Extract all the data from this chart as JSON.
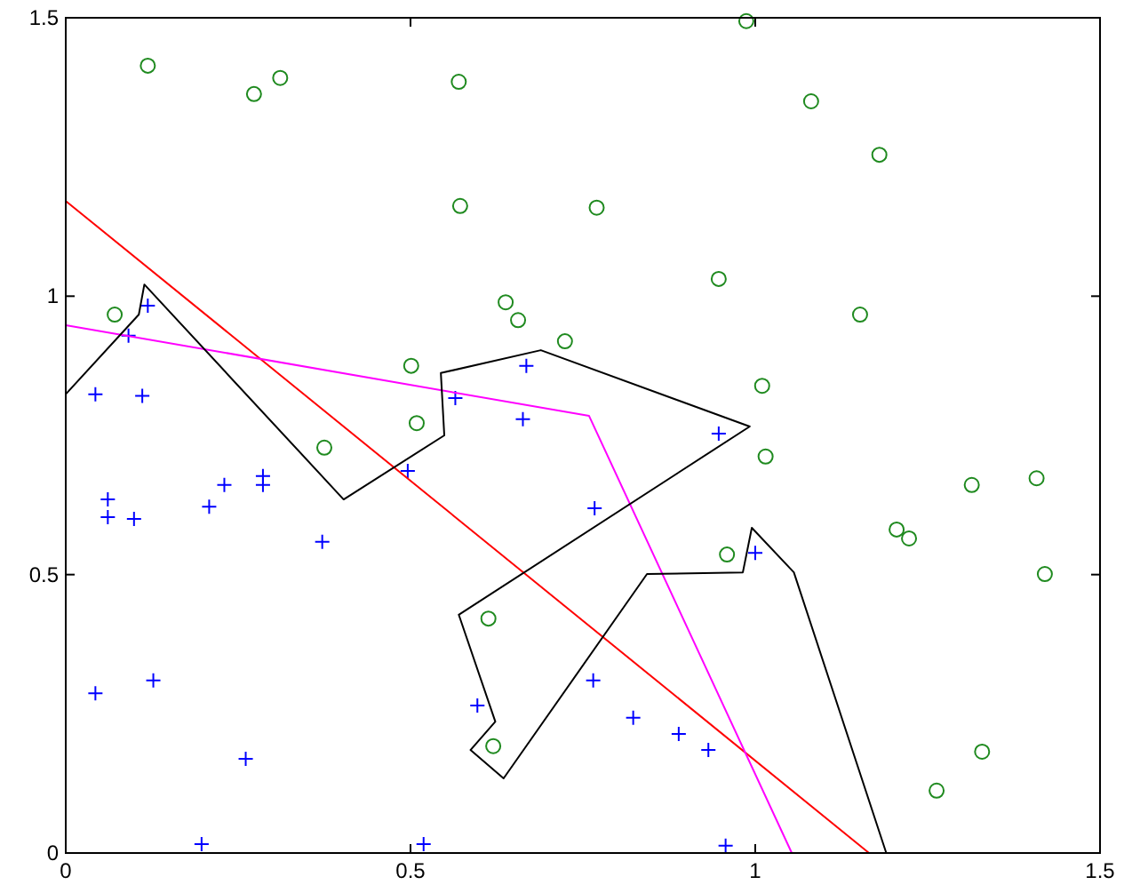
{
  "chart_data": {
    "type": "scatter",
    "xlim": [
      0,
      1.5
    ],
    "ylim": [
      0,
      1.5
    ],
    "xticks": [
      0,
      0.5,
      1,
      1.5
    ],
    "yticks": [
      0,
      0.5,
      1,
      1.5
    ],
    "grid": false,
    "series": [
      {
        "marker": "circle",
        "color": "#1f8a1f",
        "x": [
          0.119,
          0.273,
          0.311,
          0.57,
          0.572,
          0.071,
          0.375,
          0.501,
          0.509,
          0.638,
          0.656,
          0.724,
          0.77,
          0.987,
          0.947,
          1.081,
          1.18,
          1.01,
          1.015,
          1.152,
          1.314,
          1.408,
          1.205,
          1.223,
          1.42,
          0.959,
          0.613,
          0.62,
          1.263,
          1.329
        ],
        "values": [
          1.414,
          1.363,
          1.392,
          1.385,
          1.162,
          0.967,
          0.728,
          0.875,
          0.772,
          0.989,
          0.957,
          0.919,
          1.159,
          1.494,
          1.031,
          1.35,
          1.254,
          0.839,
          0.712,
          0.967,
          0.661,
          0.673,
          0.581,
          0.565,
          0.501,
          0.536,
          0.421,
          0.192,
          0.112,
          0.182
        ]
      },
      {
        "marker": "cross",
        "color": "#0000ff",
        "x": [
          0.119,
          0.091,
          0.043,
          0.111,
          0.061,
          0.061,
          0.099,
          0.208,
          0.23,
          0.286,
          0.286,
          0.372,
          0.043,
          0.127,
          0.261,
          0.197,
          0.519,
          0.496,
          0.565,
          0.668,
          0.663,
          0.767,
          0.947,
          1.0,
          0.765,
          0.823,
          0.889,
          0.932,
          0.957,
          0.597
        ],
        "values": [
          0.983,
          0.929,
          0.824,
          0.821,
          0.635,
          0.603,
          0.6,
          0.622,
          0.661,
          0.677,
          0.661,
          0.559,
          0.287,
          0.31,
          0.169,
          0.016,
          0.016,
          0.686,
          0.817,
          0.875,
          0.779,
          0.619,
          0.753,
          0.539,
          0.31,
          0.243,
          0.214,
          0.185,
          0.013,
          0.265
        ]
      },
      {
        "type": "line",
        "marker": "none",
        "line_style": "solid",
        "color": "#ff0000",
        "x": [
          0,
          1.165
        ],
        "values": [
          1.171,
          0
        ]
      },
      {
        "type": "line",
        "marker": "none",
        "line_style": "solid",
        "color": "#ff00ff",
        "x": [
          0,
          0.759,
          1.053
        ],
        "values": [
          0.948,
          0.785,
          0
        ]
      },
      {
        "type": "line",
        "marker": "none",
        "line_style": "solid",
        "color": "#000000",
        "x": [
          0,
          0.106,
          0.114,
          0.403,
          0.549,
          0.544,
          0.689,
          0.992,
          0.57,
          0.623,
          0.587,
          0.635,
          0.843,
          0.982,
          0.995,
          1.056,
          1.19
        ],
        "values": [
          0.824,
          0.967,
          1.021,
          0.635,
          0.75,
          0.862,
          0.903,
          0.766,
          0.428,
          0.236,
          0.185,
          0.134,
          0.501,
          0.504,
          0.584,
          0.504,
          0
        ]
      }
    ]
  }
}
